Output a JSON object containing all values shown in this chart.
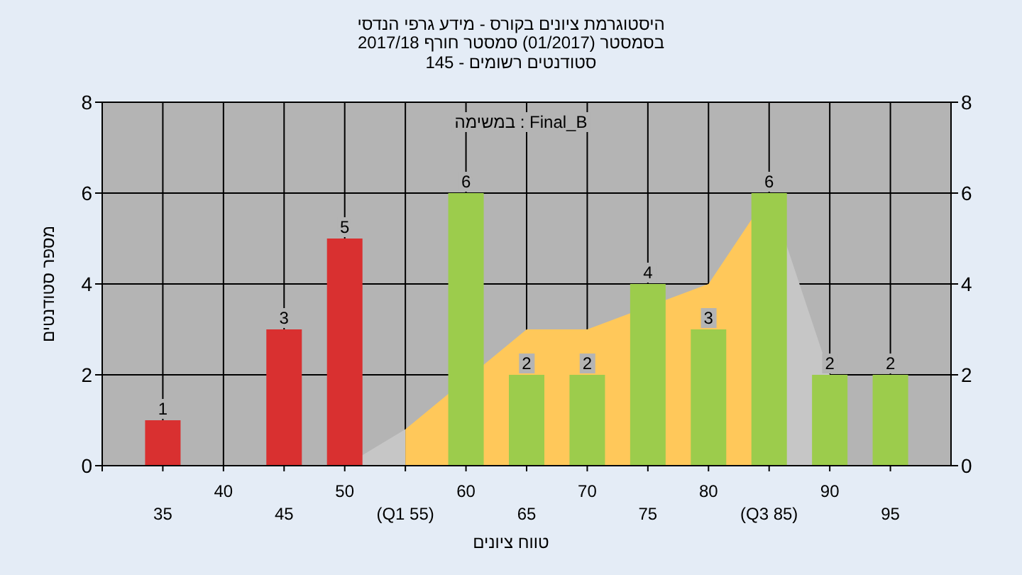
{
  "chart_data": {
    "type": "bar",
    "title": "היסטוגרמת ציונים בקורס - מידע גרפי הנדסי",
    "subtitle": "בסמסטר (01/2017) סמסטר חורף 2017/18",
    "annotations": [
      "סטודנטים רשומים - 145",
      "Final_B : במשימה"
    ],
    "xlabel": "טווח ציונים",
    "ylabel": "מספר סטודנטים",
    "categories": [
      "35",
      "40",
      "45",
      "50",
      "(Q1 55)",
      "60",
      "65",
      "70",
      "75",
      "80",
      "(Q3 85)",
      "90",
      "95"
    ],
    "series": [
      {
        "type": "area",
        "color": "#c6c6c6",
        "values": [
          null,
          null,
          null,
          0,
          0.8,
          null,
          null,
          null,
          null,
          null,
          null,
          null,
          null
        ]
      },
      {
        "type": "area",
        "color": "#ffc85a",
        "values": [
          null,
          null,
          null,
          null,
          0.8,
          null,
          3,
          3,
          null,
          4,
          6,
          null,
          null
        ]
      },
      {
        "type": "area",
        "color": "#c6c6c6",
        "values": [
          null,
          null,
          null,
          null,
          null,
          null,
          null,
          null,
          null,
          null,
          6,
          2,
          null
        ]
      },
      {
        "colors": [
          "#d93030",
          null,
          "#d93030",
          "#d93030",
          null,
          "#9ccc4c",
          "#9ccc4c",
          "#9ccc4c",
          "#9ccc4c",
          "#9ccc4c",
          "#9ccc4c",
          "#9ccc4c",
          "#9ccc4c"
        ],
        "values": [
          1,
          null,
          3,
          5,
          null,
          6,
          2,
          2,
          4,
          3,
          6,
          2,
          2
        ],
        "value_labels": [
          "1",
          null,
          "3",
          "5",
          null,
          "6",
          "2",
          "2",
          "4",
          "3",
          "6",
          "2",
          "2"
        ]
      }
    ],
    "ylim": [
      0,
      8
    ],
    "yticks": [
      0,
      2,
      4,
      6,
      8
    ],
    "y2lim": [
      0,
      8
    ],
    "y2ticks": [
      0,
      2,
      4,
      6,
      8
    ],
    "grid": true
  }
}
